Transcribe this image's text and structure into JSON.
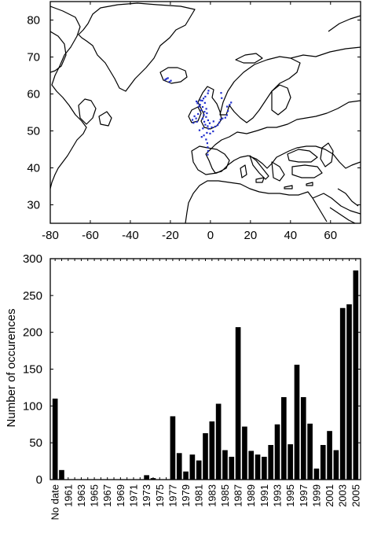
{
  "chart_data": [
    {
      "type": "map",
      "title": "",
      "xlim": [
        -80,
        75
      ],
      "ylim": [
        25,
        85
      ],
      "xticks": [
        -80,
        -60,
        -40,
        -20,
        0,
        20,
        40,
        60
      ],
      "yticks": [
        30,
        40,
        50,
        60,
        70,
        80
      ],
      "xtick_labels": [
        "-80",
        "-60",
        "-40",
        "-20",
        "0",
        "20",
        "40",
        "60"
      ],
      "ytick_labels": [
        "30",
        "40",
        "50",
        "60",
        "70",
        "80"
      ],
      "occurrence_color": "#1f2dcc",
      "occurrence_points": [
        [
          -3.5,
          58.8
        ],
        [
          -4.1,
          58.2
        ],
        [
          -2.8,
          57.6
        ],
        [
          -5.2,
          57.1
        ],
        [
          -3.9,
          56.5
        ],
        [
          -2.1,
          56.0
        ],
        [
          -4.6,
          55.6
        ],
        [
          -3.0,
          55.2
        ],
        [
          -1.8,
          54.8
        ],
        [
          -3.4,
          54.3
        ],
        [
          -2.2,
          53.8
        ],
        [
          -4.0,
          53.3
        ],
        [
          -1.2,
          52.9
        ],
        [
          -3.1,
          52.5
        ],
        [
          -0.4,
          52.1
        ],
        [
          -2.6,
          51.7
        ],
        [
          -1.4,
          51.3
        ],
        [
          0.6,
          51.0
        ],
        [
          -3.8,
          50.7
        ],
        [
          -1.0,
          50.6
        ],
        [
          -5.5,
          50.2
        ],
        [
          -6.2,
          54.6
        ],
        [
          -8.0,
          54.0
        ],
        [
          -7.2,
          53.4
        ],
        [
          -9.0,
          53.0
        ],
        [
          -8.5,
          52.2
        ],
        [
          -6.8,
          52.5
        ],
        [
          -5.8,
          56.6
        ],
        [
          -6.5,
          57.5
        ],
        [
          -5.0,
          58.3
        ],
        [
          -7.0,
          58.0
        ],
        [
          -2.6,
          59.3
        ],
        [
          -1.3,
          60.2
        ],
        [
          -1.0,
          60.9
        ],
        [
          1.5,
          52.6
        ],
        [
          2.4,
          51.2
        ],
        [
          3.6,
          51.6
        ],
        [
          4.4,
          52.3
        ],
        [
          5.0,
          53.1
        ],
        [
          6.0,
          53.4
        ],
        [
          7.4,
          53.6
        ],
        [
          8.2,
          54.3
        ],
        [
          8.7,
          55.4
        ],
        [
          8.3,
          56.6
        ],
        [
          9.6,
          57.1
        ],
        [
          10.3,
          57.7
        ],
        [
          5.6,
          58.9
        ],
        [
          5.3,
          60.3
        ],
        [
          -2.2,
          47.7
        ],
        [
          -1.6,
          46.7
        ],
        [
          -1.4,
          45.6
        ],
        [
          -1.2,
          44.6
        ],
        [
          -1.4,
          43.6
        ],
        [
          -4.4,
          48.4
        ],
        [
          -3.3,
          48.8
        ],
        [
          -1.8,
          49.5
        ],
        [
          -0.2,
          49.3
        ],
        [
          1.3,
          49.9
        ],
        [
          -22.0,
          64.1
        ],
        [
          -21.3,
          64.3
        ],
        [
          -19.8,
          63.6
        ],
        [
          -22.6,
          63.9
        ],
        [
          -20.5,
          63.3
        ]
      ]
    },
    {
      "type": "bar",
      "title": "",
      "xlabel": "",
      "ylabel": "Number of occurences",
      "ylim": [
        0,
        300
      ],
      "yticks": [
        0,
        50,
        100,
        150,
        200,
        250,
        300
      ],
      "bar_color": "#000000",
      "categories": [
        "No date",
        "1960",
        "1961",
        "1962",
        "1963",
        "1964",
        "1965",
        "1966",
        "1967",
        "1968",
        "1969",
        "1970",
        "1971",
        "1972",
        "1973",
        "1974",
        "1975",
        "1976",
        "1977",
        "1978",
        "1979",
        "1980",
        "1981",
        "1982",
        "1983",
        "1984",
        "1985",
        "1986",
        "1987",
        "1988",
        "1989",
        "1990",
        "1991",
        "1992",
        "1993",
        "1994",
        "1995",
        "1996",
        "1997",
        "1998",
        "1999",
        "2000",
        "2001",
        "2002",
        "2003",
        "2004",
        "2005"
      ],
      "values": [
        110,
        13,
        0,
        0,
        0,
        0,
        0,
        0,
        0,
        0,
        0,
        0,
        0,
        0,
        6,
        2,
        0,
        0,
        86,
        36,
        11,
        34,
        26,
        63,
        79,
        103,
        40,
        31,
        207,
        72,
        39,
        34,
        31,
        47,
        75,
        112,
        48,
        156,
        112,
        76,
        15,
        47,
        66,
        40,
        233,
        238,
        284
      ],
      "tick_labels": [
        "No date",
        "1961",
        "1963",
        "1965",
        "1967",
        "1969",
        "1971",
        "1973",
        "1975",
        "1977",
        "1979",
        "1981",
        "1983",
        "1985",
        "1987",
        "1989",
        "1991",
        "1993",
        "1995",
        "1997",
        "1999",
        "2001",
        "2003",
        "2005"
      ]
    }
  ]
}
